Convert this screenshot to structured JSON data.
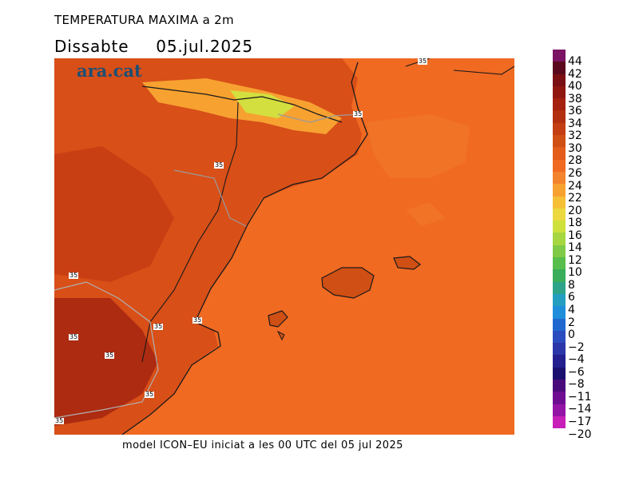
{
  "title": "TEMPERATURA MAXIMA a 2m",
  "day": "Dissabte",
  "date": "05.jul.2025",
  "logo": "ara.cat",
  "footer": "model ICON–EU iniciat a les 00 UTC del 05 jul 2025",
  "isotherm_label": "35",
  "legend": {
    "labels": [
      "44",
      "42",
      "40",
      "38",
      "36",
      "34",
      "32",
      "30",
      "28",
      "26",
      "24",
      "22",
      "20",
      "18",
      "16",
      "14",
      "12",
      "10",
      "8",
      "6",
      "4",
      "2",
      "0",
      "−2",
      "−4",
      "−6",
      "−8",
      "−11",
      "−14",
      "−17",
      "−20"
    ],
    "colors": [
      "#7a1463",
      "#5a0a1c",
      "#7a0f14",
      "#8f1710",
      "#a5200e",
      "#b22f10",
      "#c33e12",
      "#d04f14",
      "#e35c1b",
      "#f06a22",
      "#f3832c",
      "#f7a131",
      "#f5c036",
      "#ebd93f",
      "#cee03c",
      "#a6d640",
      "#7fca47",
      "#58be4c",
      "#3aae5a",
      "#2da38a",
      "#249ec0",
      "#1e8edb",
      "#2068cf",
      "#2a4cbf",
      "#2b36a8",
      "#231f8f",
      "#1a0f6e",
      "#4a0b7a",
      "#6e0d92",
      "#9414a6",
      "#c81fb8"
    ]
  }
}
